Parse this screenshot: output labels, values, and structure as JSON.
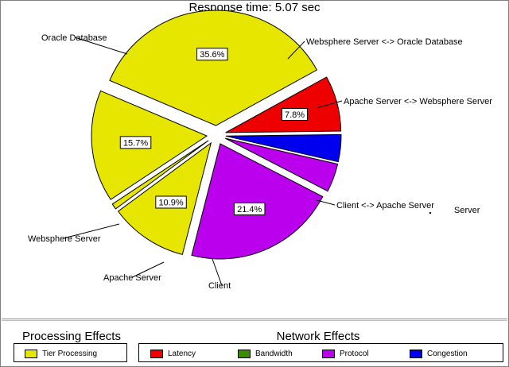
{
  "title": "Response time: 5.07 sec",
  "colors": {
    "tier_processing": "#e6e600",
    "latency": "#ee0000",
    "bandwidth": "#3a8a00",
    "protocol": "#bb00ee",
    "congestion": "#0000ee"
  },
  "chart_data": {
    "type": "pie",
    "title": "Response time: 5.07 sec",
    "slices": [
      {
        "label": "Oracle Database",
        "value": 35.6,
        "value_label": "35.6%",
        "effect": "Tier Processing"
      },
      {
        "label": "Websphere Server <-> Oracle Database",
        "value": 7.8,
        "value_label": "7.8%",
        "effect": "Latency"
      },
      {
        "label": "Websphere Server <-> Oracle Database",
        "value": 3.8,
        "value_label": "",
        "effect": "Congestion"
      },
      {
        "label": "Apache Server <-> Websphere Server",
        "value": 4.0,
        "value_label": "",
        "effect": "Protocol"
      },
      {
        "label": "Client <-> Apache Server",
        "value": 21.4,
        "value_label": "21.4%",
        "effect": "Protocol"
      },
      {
        "label": "Client",
        "value": 10.9,
        "value_label": "10.9%",
        "effect": "Tier Processing"
      },
      {
        "label": "Apache Server",
        "value": 0.8,
        "value_label": "",
        "effect": "Tier Processing"
      },
      {
        "label": "Websphere Server",
        "value": 15.7,
        "value_label": "15.7%",
        "effect": "Tier Processing"
      }
    ],
    "extra_label": "Server",
    "legend_placement": "bottom"
  },
  "legend": {
    "processing_title": "Processing Effects",
    "network_title": "Network Effects",
    "processing_items": [
      {
        "label": "Tier Processing",
        "color": "#e6e600"
      }
    ],
    "network_items": [
      {
        "label": "Latency",
        "color": "#ee0000"
      },
      {
        "label": "Bandwidth",
        "color": "#3a8a00"
      },
      {
        "label": "Protocol",
        "color": "#bb00ee"
      },
      {
        "label": "Congestion",
        "color": "#0000ee"
      }
    ]
  }
}
